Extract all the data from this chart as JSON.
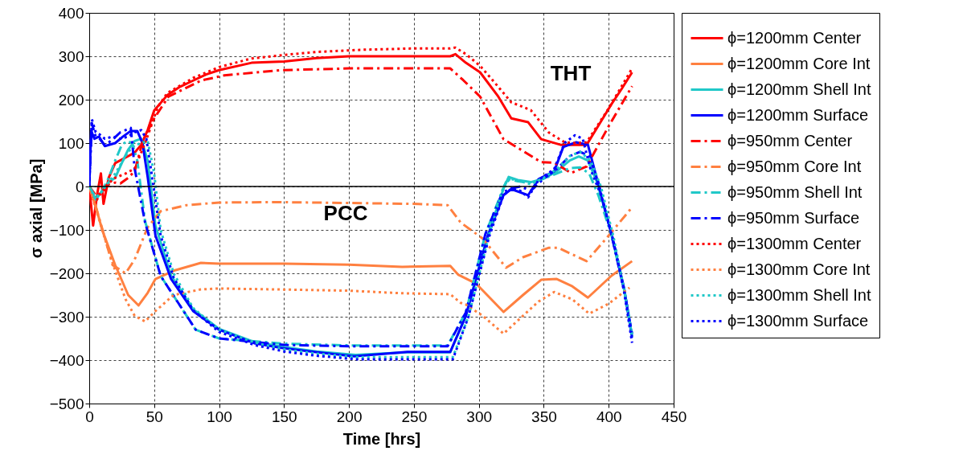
{
  "chart_data": {
    "type": "line",
    "xlabel": "Time [hrs]",
    "ylabel": "σ axial [MPa]",
    "xlim": [
      0,
      450
    ],
    "xticks": [
      0,
      50,
      100,
      150,
      200,
      250,
      300,
      350,
      400,
      450
    ],
    "ylim": [
      -500,
      400
    ],
    "yticks": [
      -500,
      -400,
      -300,
      -200,
      -100,
      0,
      100,
      200,
      300,
      400
    ],
    "grid": true,
    "legend": "right",
    "ref_lines": [
      {
        "axis": "y",
        "value": 0,
        "color": "#000000"
      }
    ],
    "annotations": [
      "PCC",
      "THT"
    ],
    "series": [
      {
        "name": "ϕ=1200mm Center",
        "color": "#ff0000",
        "line_style": "solid",
        "x": [
          0,
          3,
          6,
          9,
          11,
          15,
          20,
          30,
          35,
          40,
          45,
          50,
          60,
          70,
          80,
          90,
          100,
          125,
          150,
          175,
          200,
          250,
          278,
          282,
          290,
          301,
          315,
          325,
          338,
          348,
          363,
          375,
          383,
          390,
          402,
          410,
          418
        ],
        "values": [
          0,
          -90,
          -20,
          30,
          -40,
          20,
          54,
          70,
          78,
          96,
          130,
          175,
          210,
          230,
          244,
          258,
          268,
          285,
          288,
          296,
          300,
          300,
          300,
          305,
          285,
          263,
          207,
          157,
          148,
          109,
          96,
          96,
          96,
          130,
          189,
          225,
          263
        ]
      },
      {
        "name": "ϕ=1200mm Core Int",
        "color": "#ff8040",
        "line_style": "solid",
        "x": [
          0,
          5,
          10,
          20,
          30,
          38,
          45,
          51,
          65,
          86,
          100,
          150,
          200,
          241,
          278,
          284,
          298,
          319,
          334,
          348,
          360,
          372,
          384,
          402,
          418
        ],
        "values": [
          0,
          -46,
          -100,
          -181,
          -250,
          -274,
          -245,
          -213,
          -194,
          -176,
          -178,
          -178,
          -180,
          -185,
          -183,
          -203,
          -224,
          -289,
          -250,
          -215,
          -213,
          -230,
          -256,
          -206,
          -172
        ]
      },
      {
        "name": "ϕ=1200mm Shell Int",
        "color": "#20c8c8",
        "line_style": "solid",
        "x": [
          0,
          5,
          10,
          15,
          20,
          26,
          30,
          35,
          40,
          45,
          51,
          63,
          80,
          100,
          127,
          150,
          175,
          205,
          245,
          278,
          290,
          307,
          319,
          323,
          330,
          340,
          350,
          360,
          370,
          377,
          384,
          391,
          402,
          412,
          418
        ],
        "values": [
          0,
          -30,
          -10,
          10,
          20,
          60,
          85,
          105,
          110,
          60,
          -90,
          -205,
          -283,
          -328,
          -358,
          -370,
          -380,
          -388,
          -382,
          -382,
          -298,
          -113,
          -5,
          22,
          15,
          10,
          18,
          35,
          60,
          69,
          60,
          10,
          -107,
          -237,
          -345
        ]
      },
      {
        "name": "ϕ=1200mm Surface",
        "color": "#0000ff",
        "line_style": "solid",
        "x": [
          0,
          1.5,
          4,
          7.6,
          12,
          20,
          26,
          32,
          37,
          41,
          45,
          51,
          63,
          80,
          100,
          127,
          148,
          173,
          204,
          245,
          278,
          290,
          307,
          319,
          325,
          338,
          346,
          358,
          365,
          375,
          384,
          391,
          402,
          412,
          418
        ],
        "values": [
          0,
          128,
          110,
          115,
          93,
          100,
          115,
          128,
          128,
          100,
          22,
          -113,
          -213,
          -287,
          -330,
          -361,
          -372,
          -381,
          -391,
          -381,
          -381,
          -298,
          -113,
          -20,
          -6,
          -20,
          17,
          35,
          91,
          102,
          96,
          17,
          -107,
          -237,
          -348
        ]
      },
      {
        "name": "ϕ=950mm Center",
        "color": "#ff0000",
        "line_style": "dashed",
        "x": [
          0,
          5,
          10,
          15,
          20,
          24,
          30,
          35,
          41,
          49,
          61,
          86,
          104,
          148,
          200,
          250,
          278,
          288,
          301,
          319,
          329,
          348,
          358,
          371,
          383,
          400,
          418
        ],
        "values": [
          0,
          -20,
          -15,
          5,
          9,
          7,
          20,
          35,
          102,
          152,
          207,
          244,
          256,
          268,
          272,
          272,
          272,
          245,
          207,
          109,
          91,
          56,
          55,
          31,
          46,
          139,
          231
        ]
      },
      {
        "name": "ϕ=950mm Core Int",
        "color": "#ff8040",
        "line_style": "dashed",
        "x": [
          0,
          5,
          18,
          28,
          35,
          45,
          55,
          75,
          100,
          146,
          200,
          250,
          276,
          286,
          303,
          321,
          334,
          354,
          361,
          383,
          400,
          418
        ],
        "values": [
          0,
          -45,
          -181,
          -200,
          -168,
          -94,
          -57,
          -43,
          -37,
          -36,
          -38,
          -40,
          -43,
          -83,
          -120,
          -187,
          -163,
          -141,
          -141,
          -172,
          -113,
          -48
        ]
      },
      {
        "name": "ϕ=950mm Shell Int",
        "color": "#20c8c8",
        "line_style": "dashed",
        "x": [
          0,
          5,
          10,
          15,
          20,
          25,
          29,
          33,
          37,
          43,
          55,
          82,
          100,
          150,
          200,
          250,
          276,
          290,
          305,
          318,
          322,
          330,
          340,
          350,
          360,
          370,
          378,
          385,
          392,
          402,
          412,
          418
        ],
        "values": [
          0,
          -25,
          -10,
          20,
          60,
          95,
          105,
          100,
          60,
          -80,
          -206,
          -330,
          -350,
          -362,
          -366,
          -366,
          -366,
          -290,
          -110,
          -10,
          18,
          12,
          8,
          18,
          30,
          42,
          44,
          30,
          -20,
          -110,
          -240,
          -340
        ]
      },
      {
        "name": "ϕ=950mm Surface",
        "color": "#0000ff",
        "line_style": "dashed",
        "x": [
          0,
          2,
          5,
          8,
          12,
          18,
          24,
          28,
          32,
          35,
          43,
          55,
          82,
          100,
          150,
          200,
          250,
          276,
          290,
          305,
          318,
          324,
          332,
          340,
          350,
          360,
          370,
          378,
          385,
          392,
          402,
          412,
          418
        ],
        "values": [
          0,
          145,
          115,
          110,
          95,
          108,
          125,
          130,
          135,
          41,
          -83,
          -206,
          -330,
          -350,
          -365,
          -368,
          -368,
          -368,
          -290,
          -110,
          -15,
          -5,
          0,
          -10,
          18,
          40,
          70,
          80,
          70,
          10,
          -110,
          -240,
          -340
        ]
      },
      {
        "name": "ϕ=1300mm Center",
        "color": "#ff0000",
        "line_style": "dotted",
        "x": [
          0,
          4,
          8,
          14,
          20,
          28,
          35,
          43,
          53,
          60,
          80,
          100,
          125,
          150,
          175,
          210,
          250,
          278,
          282,
          290,
          301,
          312,
          325,
          340,
          354,
          366,
          375,
          383,
          400,
          418
        ],
        "values": [
          0,
          -40,
          -20,
          5,
          20,
          30,
          41,
          100,
          184,
          215,
          250,
          275,
          295,
          303,
          310,
          315,
          318,
          318,
          320,
          305,
          278,
          240,
          194,
          176,
          124,
          102,
          100,
          102,
          180,
          272
        ]
      },
      {
        "name": "ϕ=1300mm Core Int",
        "color": "#ff8040",
        "line_style": "dotted",
        "x": [
          0,
          5,
          12,
          20,
          28,
          35,
          43,
          51,
          65,
          86,
          100,
          142,
          200,
          241,
          278,
          286,
          290,
          303,
          319,
          334,
          346,
          358,
          372,
          385,
          400,
          416
        ],
        "values": [
          0,
          -50,
          -120,
          -194,
          -260,
          -298,
          -311,
          -287,
          -250,
          -237,
          -235,
          -237,
          -240,
          -246,
          -248,
          -268,
          -272,
          -298,
          -339,
          -298,
          -265,
          -243,
          -260,
          -293,
          -270,
          -233
        ]
      },
      {
        "name": "ϕ=1300mm Shell Int",
        "color": "#20c8c8",
        "line_style": "dotted",
        "x": [
          0,
          5,
          10,
          15,
          20,
          25,
          30,
          35,
          40,
          45,
          50,
          55,
          65,
          80,
          100,
          127,
          150,
          175,
          205,
          245,
          280,
          292,
          308,
          319,
          324,
          332,
          340,
          350,
          360,
          370,
          378,
          386,
          394,
          404,
          412,
          418
        ],
        "values": [
          0,
          -30,
          -10,
          10,
          30,
          55,
          80,
          95,
          100,
          105,
          30,
          -100,
          -200,
          -280,
          -330,
          -360,
          -375,
          -385,
          -393,
          -393,
          -393,
          -300,
          -110,
          0,
          18,
          12,
          5,
          20,
          40,
          70,
          80,
          60,
          0,
          -120,
          -240,
          -345
        ]
      },
      {
        "name": "ϕ=1300mm Surface",
        "color": "#0000ff",
        "line_style": "dotted",
        "x": [
          0,
          2,
          5,
          8,
          12,
          18,
          24,
          30,
          35,
          40,
          44,
          48,
          55,
          65,
          80,
          100,
          127,
          150,
          175,
          205,
          245,
          280,
          292,
          308,
          319,
          325,
          332,
          338,
          346,
          358,
          366,
          374,
          380,
          386,
          394,
          404,
          412,
          418
        ],
        "values": [
          0,
          155,
          125,
          120,
          110,
          115,
          110,
          115,
          125,
          130,
          110,
          30,
          -113,
          -210,
          -285,
          -335,
          -365,
          -380,
          -390,
          -398,
          -398,
          -398,
          -300,
          -115,
          -20,
          -5,
          -10,
          -25,
          15,
          40,
          100,
          118,
          110,
          40,
          -20,
          -130,
          -245,
          -360
        ]
      }
    ]
  }
}
